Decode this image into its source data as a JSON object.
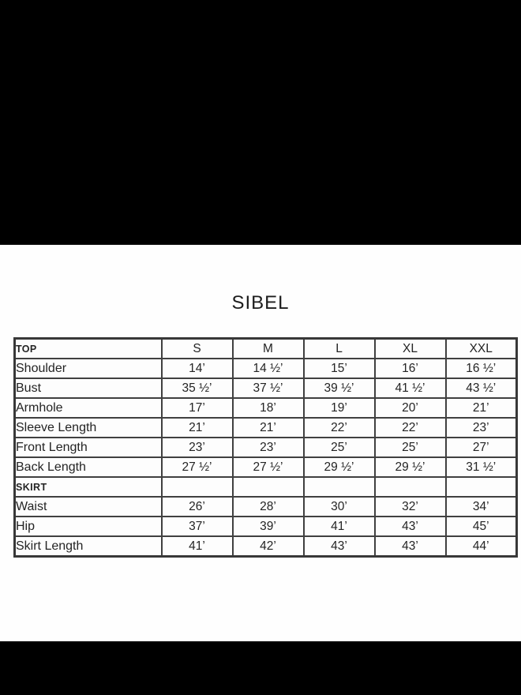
{
  "page": {
    "letterbox_color": "#000000",
    "panel_color": "#fefefe",
    "text_color": "#242424",
    "border_color": "#404040"
  },
  "title": "SIBEL",
  "size_chart": {
    "columns": [
      "TOP",
      "S",
      "M",
      "L",
      "XL",
      "XXL"
    ],
    "rows": [
      {
        "label": "Shoulder",
        "section": false,
        "values": [
          "14’",
          "14 ½’",
          "15’",
          "16’",
          "16 ½’"
        ]
      },
      {
        "label": "Bust",
        "section": false,
        "values": [
          "35 ½’",
          "37 ½’",
          "39 ½’",
          "41 ½’",
          "43 ½’"
        ]
      },
      {
        "label": "Armhole",
        "section": false,
        "values": [
          "17’",
          "18’",
          "19’",
          "20’",
          "21’"
        ]
      },
      {
        "label": "Sleeve Length",
        "section": false,
        "values": [
          "21’",
          "21’",
          "22’",
          "22’",
          "23’"
        ]
      },
      {
        "label": "Front Length",
        "section": false,
        "values": [
          "23’",
          "23’",
          "25’",
          "25’",
          "27’"
        ]
      },
      {
        "label": "Back Length",
        "section": false,
        "values": [
          "27 ½’",
          "27 ½’",
          "29 ½’",
          "29 ½’",
          "31 ½’"
        ]
      },
      {
        "label": "SKIRT",
        "section": true,
        "values": [
          "",
          "",
          "",
          "",
          ""
        ]
      },
      {
        "label": "Waist",
        "section": false,
        "values": [
          "26’",
          "28’",
          "30’",
          "32’",
          "34’"
        ]
      },
      {
        "label": "Hip",
        "section": false,
        "values": [
          "37’",
          "39’",
          "41’",
          "43’",
          "45’"
        ]
      },
      {
        "label": "Skirt Length",
        "section": false,
        "values": [
          "41’",
          "42’",
          "43’",
          "43’",
          "44’"
        ]
      }
    ]
  }
}
